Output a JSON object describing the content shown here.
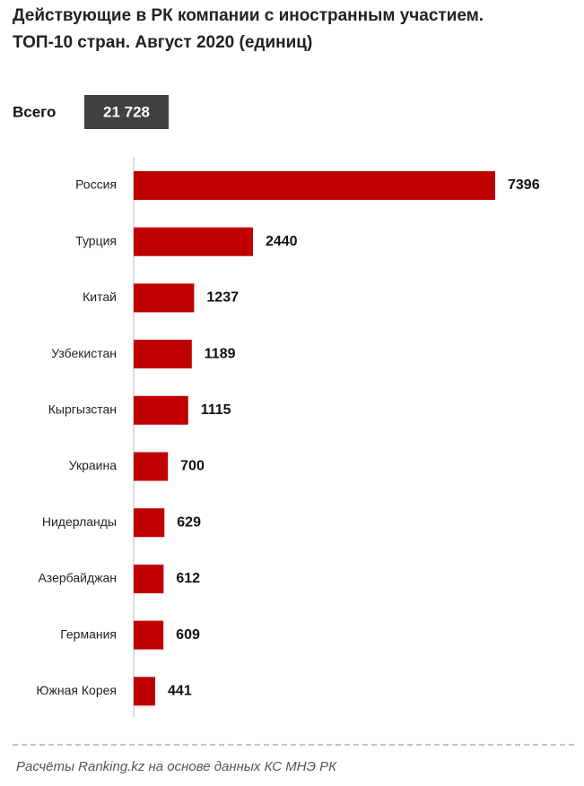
{
  "chart_data": {
    "type": "bar",
    "orientation": "horizontal",
    "title": [
      "Действующие в РК компании с иностранным участием.",
      "ТОП-10 стран. Август 2020 (единиц)"
    ],
    "total_label": "Всего",
    "total_value": "21 728",
    "categories": [
      "Россия",
      "Турция",
      "Китай",
      "Узбекистан",
      "Кыргызстан",
      "Украина",
      "Нидерланды",
      "Азербайджан",
      "Германия",
      "Южная Корея"
    ],
    "values": [
      7396,
      2440,
      1237,
      1189,
      1115,
      700,
      629,
      612,
      609,
      441
    ],
    "color": "#c00000",
    "source": "Расчёты Ranking.kz на основе данных КС МНЭ РК"
  }
}
